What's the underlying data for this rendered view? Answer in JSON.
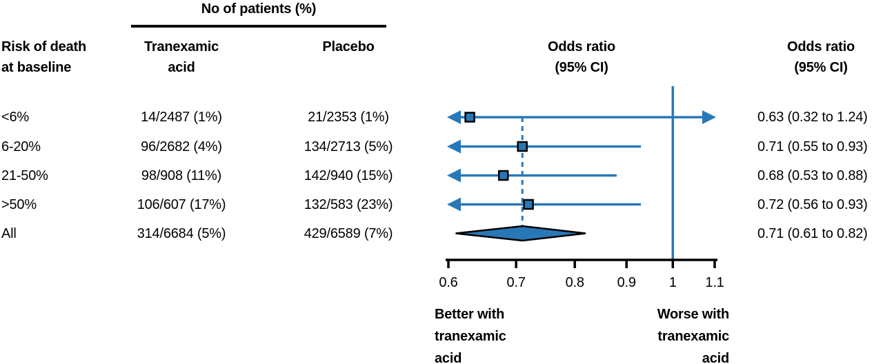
{
  "colors": {
    "accent_blue": "#2878b8",
    "ink": "#000000"
  },
  "header": {
    "group": "No of patients (%)",
    "risk_line1": "Risk of death",
    "risk_line2": "at baseline",
    "tranexamic_line1": "Tranexamic",
    "tranexamic_line2": "acid",
    "placebo": "Placebo",
    "or_line1": "Odds ratio",
    "or_line2": "(95% CI)"
  },
  "chart_data": {
    "type": "forest",
    "title": "Odds ratio (95% CI)",
    "axis": {
      "scale": "log",
      "min": 0.6,
      "max": 1.1,
      "ticks": [
        0.6,
        0.7,
        0.8,
        0.9,
        1,
        1.1
      ],
      "tick_labels": [
        "0.6",
        "0.7",
        "0.8",
        "0.9",
        "1",
        "1.1"
      ],
      "reference_line": 1
    },
    "rows": [
      {
        "label": "<6%",
        "tranexamic": "14/2487 (1%)",
        "placebo": "21/2353 (1%)",
        "or": 0.63,
        "lo": 0.32,
        "hi": 1.24,
        "or_text": "0.63 (0.32 to 1.24)"
      },
      {
        "label": "6-20%",
        "tranexamic": "96/2682 (4%)",
        "placebo": "134/2713 (5%)",
        "or": 0.71,
        "lo": 0.55,
        "hi": 0.93,
        "or_text": "0.71 (0.55 to 0.93)"
      },
      {
        "label": "21-50%",
        "tranexamic": "98/908 (11%)",
        "placebo": "142/940 (15%)",
        "or": 0.68,
        "lo": 0.53,
        "hi": 0.88,
        "or_text": "0.68 (0.53 to 0.88)"
      },
      {
        "label": ">50%",
        "tranexamic": "106/607 (17%)",
        "placebo": "132/583 (23%)",
        "or": 0.72,
        "lo": 0.56,
        "hi": 0.93,
        "or_text": "0.72 (0.56 to 0.93)"
      }
    ],
    "summary": {
      "label": "All",
      "tranexamic": "314/6684 (5%)",
      "placebo": "429/6589 (7%)",
      "or": 0.71,
      "lo": 0.61,
      "hi": 0.82,
      "or_text": "0.71 (0.61 to 0.82)"
    },
    "footer_left": [
      "Better with",
      "tranexamic",
      "acid"
    ],
    "footer_right": [
      "Worse with",
      "tranexamic",
      "acid"
    ]
  }
}
